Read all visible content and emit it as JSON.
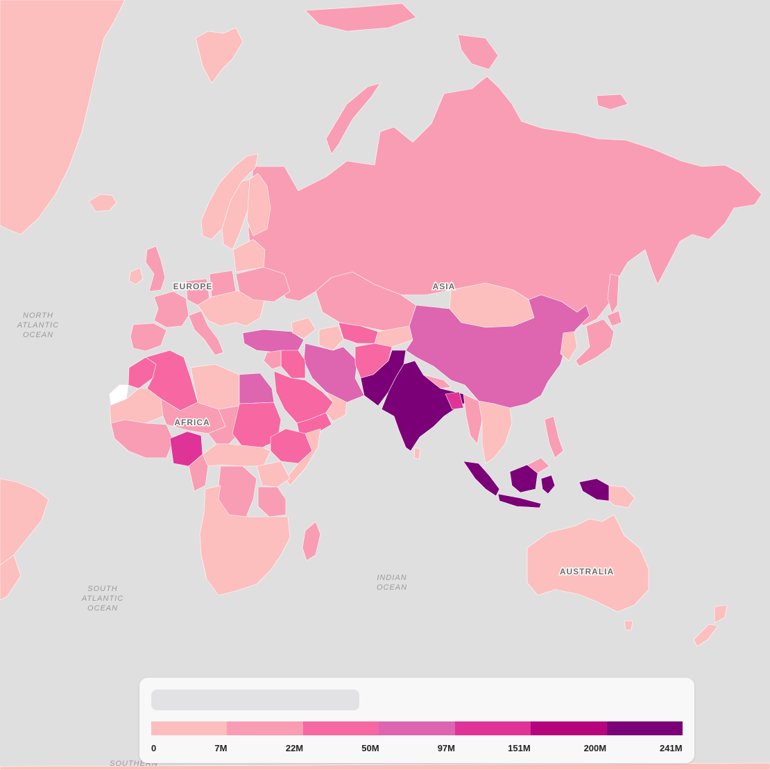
{
  "map": {
    "region_labels": {
      "europe": "EUROPE",
      "asia": "ASIA",
      "africa": "AFRICA",
      "australia": "AUSTRALIA"
    },
    "ocean_labels": {
      "north_atlantic": [
        "NORTH",
        "ATLANTIC",
        "OCEAN"
      ],
      "south_atlantic": [
        "SOUTH",
        "ATLANTIC",
        "OCEAN"
      ],
      "indian": [
        "INDIAN",
        "OCEAN"
      ],
      "southern": "SOUTHERN"
    },
    "colors": {
      "background": "#dfdfdf",
      "no_data": "#ffffff"
    }
  },
  "legend": {
    "colors": [
      "#fcbfbd",
      "#f99db4",
      "#f767a1",
      "#de65b0",
      "#e03397",
      "#b5047c",
      "#7b0077"
    ],
    "tick_labels": [
      "0",
      "7M",
      "22M",
      "50M",
      "97M",
      "151M",
      "200M",
      "241M"
    ]
  }
}
